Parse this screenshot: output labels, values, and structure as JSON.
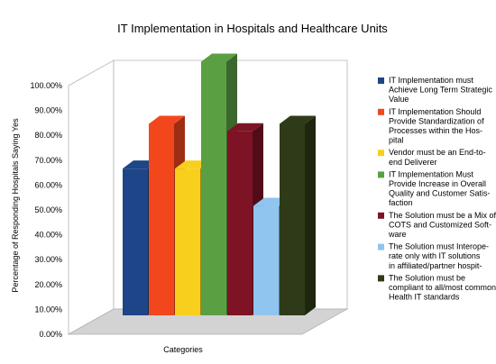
{
  "chart_data": {
    "type": "bar",
    "title": "IT Implementation in Hospitals and Healthcare Units",
    "xlabel": "Categories",
    "ylabel": "Percentage of Responding Hospitals Saying Yes",
    "ylim": [
      0,
      100
    ],
    "y_ticks": [
      "0.00%",
      "10.00%",
      "20.00%",
      "30.00%",
      "40.00%",
      "50.00%",
      "60.00%",
      "70.00%",
      "80.00%",
      "90.00%",
      "100.00%"
    ],
    "grid": false,
    "three_d": true,
    "legend_position": "right",
    "series": [
      {
        "name": [
          "IT Implementation must",
          "Achieve Long Term Strategic",
          "Value"
        ],
        "value": 59,
        "color": "#1d4587"
      },
      {
        "name": [
          "IT Implementation Should",
          "Provide Standardization of",
          "Processes within the Hos-",
          "pital"
        ],
        "value": 77,
        "color": "#f2471d"
      },
      {
        "name": [
          "Vendor must be an End-to-",
          "end Deliverer"
        ],
        "value": 59,
        "color": "#f9cf1e"
      },
      {
        "name": [
          "IT Implementation Must",
          "Provide Increase in Overall",
          "Quality and Customer Satis-",
          "faction"
        ],
        "value": 102,
        "color": "#5aa043"
      },
      {
        "name": [
          "The Solution must be a Mix of",
          "COTS and Customized Soft-",
          "ware"
        ],
        "value": 74,
        "color": "#7d1325"
      },
      {
        "name": [
          "The Solution must Interope-",
          "rate only with IT solutions",
          "in affiliated/partner hospit-"
        ],
        "value": 44,
        "color": "#8fc5ef"
      },
      {
        "name": [
          "The Solution must be",
          "compliant to all/most common",
          "Health IT standards"
        ],
        "value": 77,
        "color": "#2f3b18"
      }
    ]
  }
}
